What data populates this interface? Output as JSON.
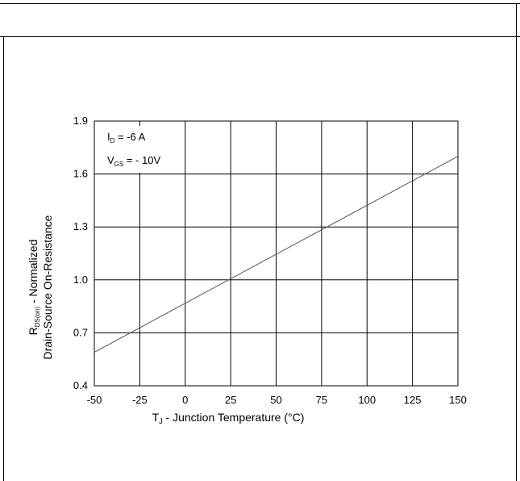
{
  "chart_data": {
    "type": "line",
    "title": "",
    "xlabel": {
      "symbol": "T",
      "subscript": "J",
      "text": " - Junction Temperature (°C)"
    },
    "ylabel": {
      "line1_symbol": "R",
      "line1_subscript": "DS(on)",
      "line1_text": " - Normalized",
      "line2": "Drain-Source On-Resistance"
    },
    "xlim": [
      -50,
      150
    ],
    "ylim": [
      0.4,
      1.9
    ],
    "xticks": [
      -50,
      -25,
      0,
      25,
      50,
      75,
      100,
      125,
      150
    ],
    "yticks": [
      0.4,
      0.7,
      1.0,
      1.3,
      1.6,
      1.9
    ],
    "xtick_labels": [
      "-50",
      "-25",
      "0",
      "25",
      "50",
      "75",
      "100",
      "125",
      "150"
    ],
    "ytick_labels": [
      "0.4",
      "0.7",
      "1.0",
      "1.3",
      "1.6",
      "1.9"
    ],
    "grid": true,
    "series": [
      {
        "x": [
          -50,
          150
        ],
        "y": [
          0.59,
          1.7
        ],
        "color": "#555555"
      }
    ],
    "annotations": [
      {
        "symbol": "I",
        "subscript": "D",
        "text": " = -6 A"
      },
      {
        "symbol": "V",
        "subscript": "GS",
        "text": " = - 10V"
      }
    ]
  }
}
